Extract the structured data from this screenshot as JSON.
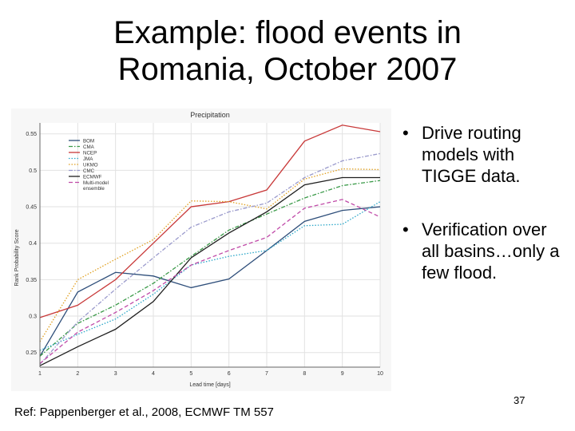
{
  "slide": {
    "title_line1": "Example: flood events in",
    "title_line2": "Romania, October 2007",
    "bullets": [
      "Drive routing models with TIGGE data.",
      "Verification over all basins…only a few flood."
    ],
    "bullet_glyph": "•",
    "reference": "Ref: Pappenberger et al., 2008, ECMWF TM 557",
    "page_number": "37"
  },
  "chart_data": {
    "type": "line",
    "title": "Precipitation",
    "xlabel": "Lead time [days]",
    "ylabel": "Rank Probability Score",
    "x": [
      1,
      2,
      3,
      4,
      5,
      6,
      7,
      8,
      9,
      10
    ],
    "xlim": [
      1,
      10
    ],
    "ylim": [
      0.23,
      0.565
    ],
    "yticks": [
      0.25,
      0.3,
      0.35,
      0.4,
      0.45,
      0.5,
      0.55
    ],
    "ytick_labels": [
      "0.25",
      "0.3",
      "0.35",
      "0.4",
      "0.45",
      "0.5",
      "0.55"
    ],
    "grid": true,
    "legend_position": "top-left",
    "series": [
      {
        "name": "BOM",
        "color": "#2e4e7a",
        "dash": "solid",
        "values": [
          0.245,
          0.333,
          0.36,
          0.355,
          0.339,
          0.351,
          0.39,
          0.43,
          0.445,
          0.45
        ]
      },
      {
        "name": "CMA",
        "color": "#3a9a48",
        "dash": "dashdot",
        "values": [
          0.245,
          0.29,
          0.315,
          0.345,
          0.382,
          0.418,
          0.44,
          0.462,
          0.479,
          0.486
        ]
      },
      {
        "name": "NCEP",
        "color": "#c83838",
        "dash": "solid",
        "values": [
          0.298,
          0.315,
          0.35,
          0.4,
          0.45,
          0.457,
          0.473,
          0.54,
          0.562,
          0.553
        ]
      },
      {
        "name": "JMA",
        "color": "#2aa6c8",
        "dash": "dot",
        "values": [
          0.253,
          0.275,
          0.296,
          0.33,
          0.37,
          0.382,
          0.39,
          0.424,
          0.426,
          0.457
        ]
      },
      {
        "name": "UKMO",
        "color": "#e0a020",
        "dash": "dot",
        "values": [
          0.265,
          0.35,
          0.378,
          0.405,
          0.458,
          0.457,
          0.447,
          0.488,
          0.502,
          0.501
        ]
      },
      {
        "name": "CMC",
        "color": "#9a9acc",
        "dash": "dashdot",
        "values": [
          0.234,
          0.292,
          0.337,
          0.38,
          0.422,
          0.443,
          0.455,
          0.49,
          0.513,
          0.523
        ]
      },
      {
        "name": "ECMWF",
        "color": "#1e1e1e",
        "dash": "solid",
        "values": [
          0.232,
          0.258,
          0.282,
          0.32,
          0.38,
          0.414,
          0.443,
          0.48,
          0.49,
          0.49
        ]
      },
      {
        "name": "Multi-model ensemble",
        "color": "#c04aa8",
        "dash": "dash",
        "values": [
          0.235,
          0.278,
          0.305,
          0.335,
          0.37,
          0.39,
          0.408,
          0.448,
          0.46,
          0.436
        ]
      }
    ]
  }
}
